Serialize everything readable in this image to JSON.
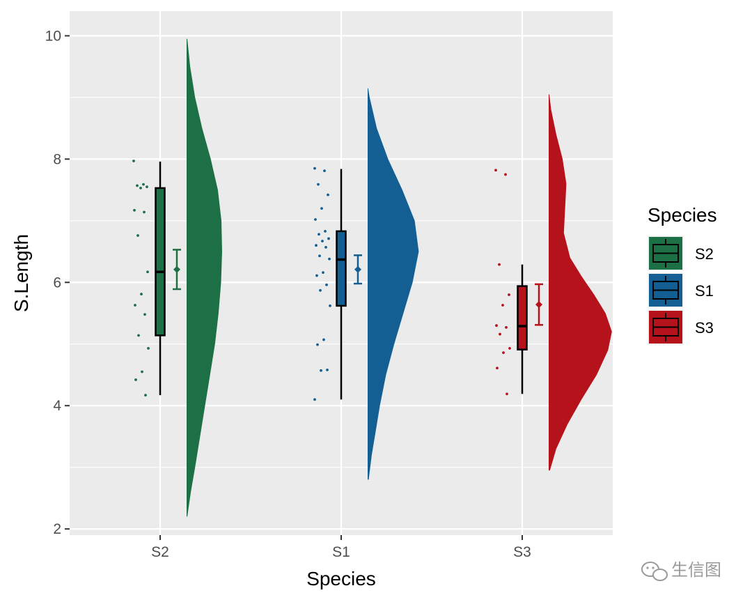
{
  "chart_data": {
    "type": "raincloud",
    "xlabel": "Species",
    "ylabel": "S.Length",
    "ylim": [
      1.9,
      10.4
    ],
    "yticks": [
      2,
      4,
      6,
      8,
      10
    ],
    "grid": true,
    "legend": {
      "title": "Species",
      "position": "right"
    },
    "categories": [
      "S2",
      "S1",
      "S3"
    ],
    "groups": [
      {
        "name": "S2",
        "color": "#1d6f45",
        "box": {
          "min": 4.17,
          "q1": 5.14,
          "median": 6.17,
          "q3": 7.53,
          "max": 7.96
        },
        "mean": 6.21,
        "ci": [
          5.89,
          6.53
        ],
        "density_range": [
          2.2,
          9.95
        ],
        "points": [
          7.97,
          7.59,
          7.57,
          7.55,
          7.53,
          7.17,
          7.14,
          6.76,
          6.17,
          5.81,
          5.63,
          5.48,
          5.14,
          4.93,
          4.55,
          4.42,
          4.17
        ],
        "density": [
          [
            2.2,
            0.02
          ],
          [
            2.6,
            0.12
          ],
          [
            3.0,
            0.24
          ],
          [
            3.5,
            0.38
          ],
          [
            4.0,
            0.52
          ],
          [
            4.5,
            0.66
          ],
          [
            5.0,
            0.8
          ],
          [
            5.5,
            0.9
          ],
          [
            6.0,
            0.97
          ],
          [
            6.5,
            1.0
          ],
          [
            7.0,
            0.98
          ],
          [
            7.5,
            0.88
          ],
          [
            8.0,
            0.68
          ],
          [
            8.5,
            0.44
          ],
          [
            9.0,
            0.24
          ],
          [
            9.5,
            0.1
          ],
          [
            9.95,
            0.02
          ]
        ]
      },
      {
        "name": "S1",
        "color": "#135f93",
        "box": {
          "min": 4.1,
          "q1": 5.62,
          "median": 6.37,
          "q3": 6.83,
          "max": 7.84
        },
        "mean": 6.21,
        "ci": [
          5.98,
          6.44
        ],
        "density_range": [
          2.8,
          9.15
        ],
        "points": [
          7.85,
          7.81,
          7.59,
          7.42,
          7.2,
          7.02,
          6.83,
          6.78,
          6.71,
          6.67,
          6.6,
          6.57,
          6.43,
          6.38,
          6.16,
          6.11,
          5.96,
          5.87,
          5.62,
          5.07,
          4.99,
          4.58,
          4.57,
          4.1
        ],
        "density": [
          [
            2.8,
            0.02
          ],
          [
            3.2,
            0.08
          ],
          [
            3.6,
            0.16
          ],
          [
            4.0,
            0.24
          ],
          [
            4.5,
            0.36
          ],
          [
            5.0,
            0.52
          ],
          [
            5.5,
            0.7
          ],
          [
            6.0,
            0.88
          ],
          [
            6.5,
            1.0
          ],
          [
            7.0,
            0.92
          ],
          [
            7.5,
            0.68
          ],
          [
            8.0,
            0.4
          ],
          [
            8.5,
            0.18
          ],
          [
            9.0,
            0.04
          ],
          [
            9.15,
            0.01
          ]
        ]
      },
      {
        "name": "S3",
        "color": "#b5121b",
        "box": {
          "min": 4.19,
          "q1": 4.91,
          "median": 5.29,
          "q3": 5.94,
          "max": 6.29
        },
        "mean": 5.64,
        "ci": [
          5.31,
          5.97
        ],
        "density_range": [
          2.95,
          9.05
        ],
        "points": [
          7.82,
          7.75,
          6.29,
          5.8,
          5.63,
          5.3,
          5.27,
          5.16,
          4.93,
          4.86,
          4.61,
          4.19
        ],
        "density": [
          [
            2.95,
            0.02
          ],
          [
            3.3,
            0.12
          ],
          [
            3.7,
            0.3
          ],
          [
            4.1,
            0.52
          ],
          [
            4.5,
            0.76
          ],
          [
            4.9,
            0.94
          ],
          [
            5.2,
            1.0
          ],
          [
            5.5,
            0.9
          ],
          [
            5.8,
            0.72
          ],
          [
            6.1,
            0.52
          ],
          [
            6.4,
            0.34
          ],
          [
            6.8,
            0.24
          ],
          [
            7.2,
            0.26
          ],
          [
            7.6,
            0.28
          ],
          [
            8.0,
            0.22
          ],
          [
            8.4,
            0.12
          ],
          [
            8.8,
            0.04
          ],
          [
            9.05,
            0.01
          ]
        ]
      }
    ]
  },
  "watermark": {
    "text": "生信图",
    "icon": "wechat-icon"
  }
}
